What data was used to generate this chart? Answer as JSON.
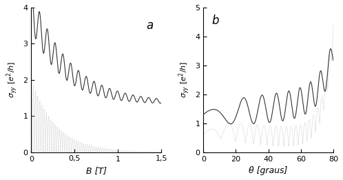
{
  "panel_a": {
    "title": "a",
    "xlabel": "B [T]",
    "ylabel": "σ_yy [e²/h]",
    "xlim": [
      0,
      1.5
    ],
    "ylim": [
      0,
      4
    ],
    "yticks": [
      0,
      1,
      2,
      3,
      4
    ],
    "xticks": [
      0,
      0.5,
      1.0,
      1.5
    ],
    "xticklabels": [
      "0",
      "0,5",
      "1",
      "1,5"
    ]
  },
  "panel_b": {
    "title": "b",
    "xlabel": "θ [graus]",
    "ylabel": "σ_yy [e²/h]",
    "xlim": [
      0,
      80
    ],
    "ylim": [
      0,
      5
    ],
    "yticks": [
      0,
      1,
      2,
      3,
      4,
      5
    ],
    "xticks": [
      0,
      20,
      40,
      60,
      80
    ]
  },
  "line_color_solid": "#333333",
  "line_color_dotted": "#aaaaaa",
  "background_color": "#ffffff",
  "figsize": [
    4.98,
    2.61
  ],
  "dpi": 100
}
